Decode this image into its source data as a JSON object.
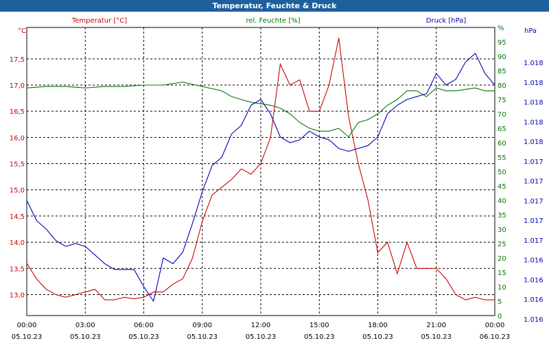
{
  "window": {
    "title": "Temperatur, Feuchte & Druck"
  },
  "colors": {
    "temperature": "#cc0000",
    "humidity": "#007700",
    "pressure": "#0000bb",
    "grid": "#000000",
    "titlebar": "#1f5f9e"
  },
  "chart_data": {
    "type": "line",
    "title": "Temperatur, Feuchte & Druck",
    "grid": true,
    "x_ticks": [
      {
        "time": "00:00",
        "date": "05.10.23"
      },
      {
        "time": "03:00",
        "date": "05.10.23"
      },
      {
        "time": "06:00",
        "date": "05.10.23"
      },
      {
        "time": "09:00",
        "date": "05.10.23"
      },
      {
        "time": "12:00",
        "date": "05.10.23"
      },
      {
        "time": "15:00",
        "date": "05.10.23"
      },
      {
        "time": "18:00",
        "date": "05.10.23"
      },
      {
        "time": "21:00",
        "date": "05.10.23"
      },
      {
        "time": "00:00",
        "date": "06.10.23"
      }
    ],
    "x_range_hours": [
      0,
      24
    ],
    "axes": {
      "temperature": {
        "label": "Temperatur [°C]",
        "unit": "°C",
        "ylim": [
          12.6,
          18.1
        ],
        "ticks": [
          "13,0",
          "13,5",
          "14,0",
          "14,5",
          "15,0",
          "15,5",
          "16,0",
          "16,5",
          "17,0",
          "17,5"
        ]
      },
      "humidity": {
        "label": "rel. Feuchte [%]",
        "unit": "%",
        "ylim": [
          0,
          100
        ],
        "ticks": [
          "0",
          "5",
          "10",
          "15",
          "20",
          "25",
          "30",
          "35",
          "40",
          "45",
          "50",
          "55",
          "60",
          "65",
          "70",
          "75",
          "80",
          "85",
          "90",
          "95",
          "%"
        ]
      },
      "pressure": {
        "label": "Druck [hPa]",
        "unit": "hPa",
        "ticks": [
          "1.016",
          "1.016",
          "1.016",
          "1.016",
          "1.017",
          "1.017",
          "1.017",
          "1.017",
          "1.017",
          "1.018",
          "1.018",
          "1.018",
          "1.018",
          "1.018"
        ]
      }
    },
    "series": [
      {
        "name": "Temperatur [°C]",
        "axis": "temperature",
        "x": [
          0,
          0.5,
          1,
          1.5,
          2,
          2.5,
          3,
          3.5,
          4,
          4.5,
          5,
          5.5,
          6,
          6.5,
          7,
          7.5,
          8,
          8.5,
          9,
          9.5,
          10,
          10.5,
          11,
          11.5,
          12,
          12.5,
          13,
          13.5,
          14,
          14.5,
          15,
          15.5,
          16,
          16.5,
          17,
          17.5,
          18,
          18.5,
          19,
          19.5,
          20,
          20.5,
          21,
          21.5,
          22,
          22.5,
          23,
          23.5,
          24
        ],
        "values": [
          13.6,
          13.3,
          13.1,
          13.0,
          12.95,
          13.0,
          13.05,
          13.1,
          12.9,
          12.9,
          12.95,
          12.92,
          12.95,
          13.05,
          13.05,
          13.2,
          13.3,
          13.7,
          14.4,
          14.9,
          15.05,
          15.2,
          15.4,
          15.3,
          15.5,
          16.0,
          17.4,
          17.0,
          17.1,
          16.5,
          16.5,
          17.0,
          17.9,
          16.4,
          15.5,
          14.8,
          13.8,
          14.0,
          13.4,
          14.0,
          13.5,
          13.5,
          13.5,
          13.3,
          13.0,
          12.9,
          12.95,
          12.9,
          12.9
        ]
      },
      {
        "name": "rel. Feuchte [%]",
        "axis": "humidity",
        "x": [
          0,
          1,
          2,
          3,
          4,
          5,
          6,
          7,
          8,
          9,
          10,
          10.5,
          11,
          11.5,
          12,
          12.5,
          13,
          13.5,
          14,
          14.5,
          15,
          15.5,
          16,
          16.5,
          17,
          17.5,
          18,
          18.5,
          19,
          19.5,
          20,
          20.5,
          21,
          21.5,
          22,
          22.5,
          23,
          23.5,
          24
        ],
        "values": [
          79,
          79.5,
          79.5,
          79,
          79.5,
          79.5,
          80,
          80,
          81,
          79.5,
          78,
          76,
          75,
          74,
          73.5,
          73,
          72,
          70,
          67,
          65,
          64,
          64,
          65,
          62,
          67,
          68,
          70,
          73,
          75,
          78,
          78,
          76,
          79,
          78,
          78,
          78.5,
          79,
          78,
          78
        ]
      },
      {
        "name": "Druck [hPa]",
        "axis": "pressure",
        "x": [
          0,
          0.5,
          1,
          1.5,
          2,
          2.5,
          3,
          3.5,
          4,
          4.5,
          5,
          5.5,
          6,
          6.5,
          7,
          7.5,
          8,
          8.5,
          9,
          9.5,
          10,
          10.5,
          11,
          11.5,
          12,
          12.5,
          13,
          13.5,
          14,
          14.5,
          15,
          15.5,
          16,
          16.5,
          17,
          17.5,
          18,
          18.5,
          19,
          19.5,
          20,
          20.5,
          21,
          21.5,
          22,
          22.5,
          23,
          23.5,
          24
        ],
        "values": [
          40,
          33,
          30,
          26,
          24,
          25,
          24,
          21,
          18,
          16,
          16,
          16,
          10,
          5,
          20,
          18,
          22,
          32,
          43,
          52,
          55,
          63,
          66,
          73,
          75,
          70,
          62,
          60,
          61,
          64,
          62,
          61,
          58,
          57,
          58,
          59,
          62,
          70,
          73,
          75,
          76,
          77,
          84,
          80,
          82,
          88,
          91,
          84,
          80
        ]
      }
    ]
  }
}
